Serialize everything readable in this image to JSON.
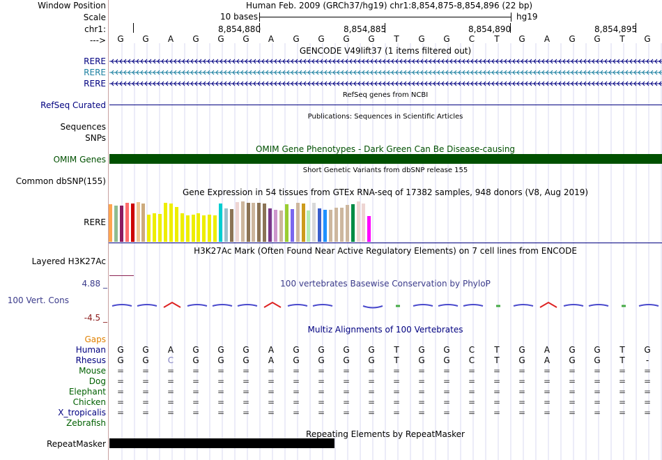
{
  "header": {
    "window_position_label": "Window Position",
    "assembly_text": "Human Feb. 2009 (GRCh37/hg19)   chr1:8,854,875-8,854,896 (22 bp)",
    "scale_label": "Scale",
    "scale_text": "10 bases",
    "scale_db": "hg19",
    "chrom_label": "chr1:",
    "coordinates": [
      "8,854,880",
      "8,854,885",
      "8,854,890",
      "8,854,895"
    ],
    "strand_label": "--->",
    "sequence": [
      "G",
      "G",
      "A",
      "G",
      "G",
      "G",
      "A",
      "G",
      "G",
      "G",
      "G",
      "T",
      "G",
      "G",
      "C",
      "T",
      "G",
      "A",
      "G",
      "G",
      "T",
      "G"
    ]
  },
  "gencode": {
    "title": "GENCODE V49lift37 (1 items filtered out)",
    "tracks": [
      {
        "label": "RERE",
        "color": "#000080"
      },
      {
        "label": "RERE",
        "color": "#1a7fa0"
      },
      {
        "label": "RERE",
        "color": "#000080"
      }
    ]
  },
  "refseq": {
    "title": "RefSeq genes from NCBI",
    "label": "RefSeq Curated"
  },
  "publications": {
    "title": "Publications: Sequences in Scientific Articles",
    "labels": [
      "Sequences",
      "SNPs"
    ]
  },
  "omim": {
    "title": "OMIM Gene Phenotypes - Dark Green Can Be Disease-causing",
    "label": "OMIM Genes",
    "color": "#005000"
  },
  "dbsnp": {
    "title": "Short Genetic Variants from dbSNP release 155",
    "label": "Common dbSNP(155)"
  },
  "gtex": {
    "title": "Gene Expression in 54 tissues from GTEx RNA-seq of 17382 samples, 948 donors (V8, Aug 2019)",
    "label": "RERE",
    "bars": [
      {
        "value": 0.93,
        "color": "#ffa54f"
      },
      {
        "value": 0.9,
        "color": "#8fbc8f"
      },
      {
        "value": 0.89,
        "color": "#8b1c62"
      },
      {
        "value": 0.97,
        "color": "#ff6a6a"
      },
      {
        "value": 0.95,
        "color": "#cd0000"
      },
      {
        "value": 0.99,
        "color": "#eec591"
      },
      {
        "value": 0.94,
        "color": "#cdaa7d"
      },
      {
        "value": 0.68,
        "color": "#eeee00"
      },
      {
        "value": 0.71,
        "color": "#eeee00"
      },
      {
        "value": 0.69,
        "color": "#eeee00"
      },
      {
        "value": 0.96,
        "color": "#eeee00"
      },
      {
        "value": 0.95,
        "color": "#eeee00"
      },
      {
        "value": 0.86,
        "color": "#eeee00"
      },
      {
        "value": 0.7,
        "color": "#eeee00"
      },
      {
        "value": 0.66,
        "color": "#eeee00"
      },
      {
        "value": 0.68,
        "color": "#eeee00"
      },
      {
        "value": 0.7,
        "color": "#eeee00"
      },
      {
        "value": 0.66,
        "color": "#eeee00"
      },
      {
        "value": 0.67,
        "color": "#eeee00"
      },
      {
        "value": 0.65,
        "color": "#eeee00"
      },
      {
        "value": 0.95,
        "color": "#00ced1"
      },
      {
        "value": 0.83,
        "color": "#9ac0cd"
      },
      {
        "value": 0.81,
        "color": "#8b7355"
      },
      {
        "value": 0.99,
        "color": "#eed5d2"
      },
      {
        "value": 1.0,
        "color": "#cdb79e"
      },
      {
        "value": 0.97,
        "color": "#8b7355"
      },
      {
        "value": 0.97,
        "color": "#cdb79e"
      },
      {
        "value": 0.97,
        "color": "#8b7355"
      },
      {
        "value": 0.95,
        "color": "#8b7355"
      },
      {
        "value": 0.82,
        "color": "#7a378b"
      },
      {
        "value": 0.8,
        "color": "#cd96cd"
      },
      {
        "value": 0.78,
        "color": "#cdb79e"
      },
      {
        "value": 0.93,
        "color": "#9acd32"
      },
      {
        "value": 0.81,
        "color": "#7a67ee"
      },
      {
        "value": 0.97,
        "color": "#cdb79e"
      },
      {
        "value": 0.95,
        "color": "#cd9b1d"
      },
      {
        "value": 0.77,
        "color": "#b4eeb4"
      },
      {
        "value": 0.97,
        "color": "#d9d9d9"
      },
      {
        "value": 0.82,
        "color": "#3a5fcd"
      },
      {
        "value": 0.8,
        "color": "#1e90ff"
      },
      {
        "value": 0.8,
        "color": "#cdb79e"
      },
      {
        "value": 0.84,
        "color": "#cdb79e"
      },
      {
        "value": 0.84,
        "color": "#cdb79e"
      },
      {
        "value": 0.91,
        "color": "#cdb79e"
      },
      {
        "value": 0.93,
        "color": "#008b45"
      },
      {
        "value": 1.0,
        "color": "#eed5d2"
      },
      {
        "value": 0.94,
        "color": "#eed5d2"
      },
      {
        "value": 0.64,
        "color": "#ff00ff"
      }
    ]
  },
  "h3k27ac": {
    "title": "H3K27Ac Mark (Often Found Near Active Regulatory Elements) on 7 cell lines from ENCODE",
    "label": "Layered H3K27Ac"
  },
  "phylop": {
    "title": "100 vertebrates Basewise Conservation by PhyloP",
    "label": "100 Vert. Cons",
    "max_label": "4.88 _",
    "min_label": "-4.5 _",
    "base_colors": [
      "#4a4acd",
      "#4a4acd",
      "#dd2222",
      "#4a4acd",
      "#4a4acd",
      "#4a4acd",
      "#dd2222",
      "#4a4acd",
      "#4a4acd",
      "#ffffff",
      "#4a4acd",
      "#44aa44",
      "#4a4acd",
      "#4a4acd",
      "#4a4acd",
      "#44aa44",
      "#4a4acd",
      "#dd2222",
      "#4a4acd",
      "#4a4acd",
      "#44aa44",
      "#4a4acd"
    ]
  },
  "multiz": {
    "title": "Multiz Alignments of 100 Vertebrates",
    "gaps_label": "Gaps",
    "species": [
      {
        "name": "Human",
        "color": "#000080",
        "bases": [
          "G",
          "G",
          "A",
          "G",
          "G",
          "G",
          "A",
          "G",
          "G",
          "G",
          "G",
          "T",
          "G",
          "G",
          "C",
          "T",
          "G",
          "A",
          "G",
          "G",
          "T",
          "G"
        ]
      },
      {
        "name": "Rhesus",
        "color": "#000080",
        "bases": [
          "G",
          "G",
          "C",
          "G",
          "G",
          "G",
          "A",
          "G",
          "G",
          "G",
          "G",
          "T",
          "G",
          "G",
          "C",
          "T",
          "G",
          "A",
          "G",
          "G",
          "T",
          "-"
        ]
      },
      {
        "name": "Mouse",
        "color": "#006000",
        "bases": [
          "=",
          "=",
          "=",
          "=",
          "=",
          "=",
          "=",
          "=",
          "=",
          "=",
          "=",
          "=",
          "=",
          "=",
          "=",
          "=",
          "=",
          "=",
          "=",
          "=",
          "=",
          "="
        ]
      },
      {
        "name": "Dog",
        "color": "#006000",
        "bases": [
          "=",
          "=",
          "=",
          "=",
          "=",
          "=",
          "=",
          "=",
          "=",
          "=",
          "=",
          "=",
          "=",
          "=",
          "=",
          "=",
          "=",
          "=",
          "=",
          "=",
          "=",
          "="
        ]
      },
      {
        "name": "Elephant",
        "color": "#006000",
        "bases": [
          "=",
          "=",
          "=",
          "=",
          "=",
          "=",
          "=",
          "=",
          "=",
          "=",
          "=",
          "=",
          "=",
          "=",
          "=",
          "=",
          "=",
          "=",
          "=",
          "=",
          "=",
          "="
        ]
      },
      {
        "name": "Chicken",
        "color": "#006000",
        "bases": [
          "=",
          "=",
          "=",
          "=",
          "=",
          "=",
          "=",
          "=",
          "=",
          "=",
          "=",
          "=",
          "=",
          "=",
          "=",
          "=",
          "=",
          "=",
          "=",
          "=",
          "=",
          "="
        ]
      },
      {
        "name": "X_tropicalis",
        "color": "#000080",
        "bases": [
          "=",
          "=",
          "=",
          "=",
          "=",
          "=",
          "=",
          "=",
          "=",
          "=",
          "=",
          "=",
          "=",
          "=",
          "=",
          "=",
          "=",
          "=",
          "=",
          "=",
          "=",
          "="
        ]
      },
      {
        "name": "Zebrafish",
        "color": "#006000",
        "bases": []
      }
    ]
  },
  "repeatmasker": {
    "title": "Repeating Elements by RepeatMasker",
    "label": "RepeatMasker"
  }
}
